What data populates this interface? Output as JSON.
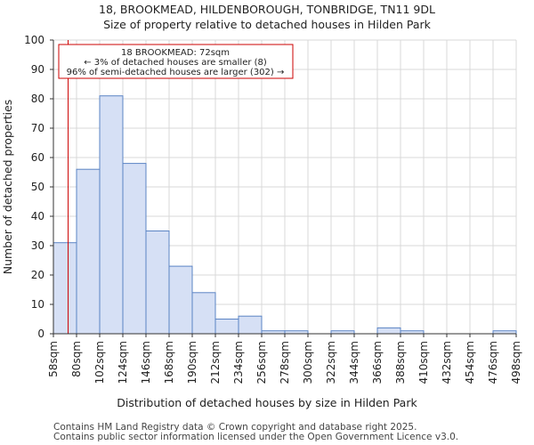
{
  "chart_data": {
    "type": "bar",
    "title": "18, BROOKMEAD, HILDENBOROUGH, TONBRIDGE, TN11 9DL",
    "subtitle": "Size of property relative to detached houses in Hilden Park",
    "xlabel": "Distribution of detached houses by size in Hilden Park",
    "ylabel": "Number of detached properties",
    "bin_edges": [
      58,
      80,
      102,
      124,
      146,
      168,
      190,
      212,
      234,
      256,
      278,
      300,
      322,
      344,
      366,
      388,
      410,
      432,
      454,
      476,
      498
    ],
    "tick_labels": [
      "58sqm",
      "80sqm",
      "102sqm",
      "124sqm",
      "146sqm",
      "168sqm",
      "190sqm",
      "212sqm",
      "234sqm",
      "256sqm",
      "278sqm",
      "300sqm",
      "322sqm",
      "344sqm",
      "366sqm",
      "388sqm",
      "410sqm",
      "432sqm",
      "454sqm",
      "476sqm",
      "498sqm"
    ],
    "values": [
      31,
      56,
      81,
      58,
      35,
      23,
      14,
      5,
      6,
      1,
      1,
      0,
      1,
      0,
      2,
      1,
      0,
      0,
      0,
      1
    ],
    "ylim": [
      0,
      100
    ],
    "yticks": [
      0,
      10,
      20,
      30,
      40,
      50,
      60,
      70,
      80,
      90,
      100
    ],
    "grid": true,
    "bar_color": "#d6e0f5",
    "bar_edge_color": "#5b84c4",
    "marker": {
      "value": 72,
      "color": "#cc0000",
      "annotation": [
        "18 BROOKMEAD: 72sqm",
        "← 3% of detached houses are smaller (8)",
        "96% of semi-detached houses are larger (302) →"
      ]
    }
  },
  "footer": {
    "line1": "Contains HM Land Registry data © Crown copyright and database right 2025.",
    "line2": "Contains public sector information licensed under the Open Government Licence v3.0."
  }
}
